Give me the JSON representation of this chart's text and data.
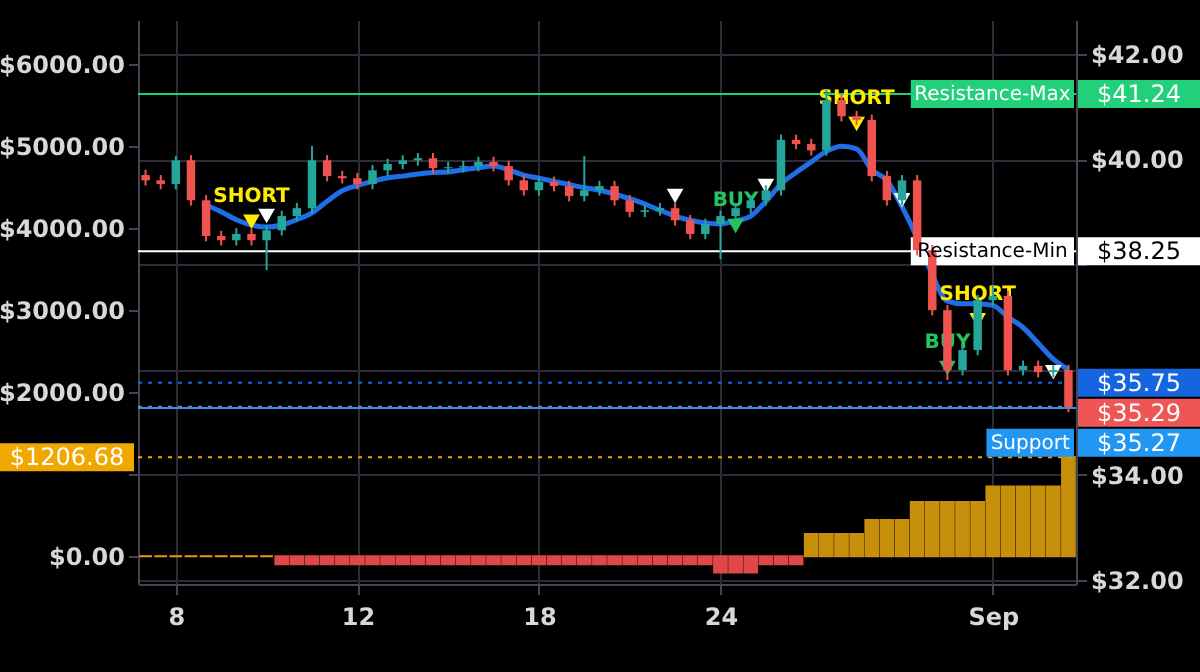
{
  "chart_data": {
    "type": "candlestick",
    "categories": [
      null,
      null,
      "8",
      null,
      null,
      null,
      null,
      null,
      null,
      null,
      null,
      null,
      null,
      null,
      "12",
      null,
      null,
      null,
      null,
      null,
      null,
      null,
      null,
      null,
      null,
      null,
      "18",
      null,
      null,
      null,
      null,
      null,
      null,
      null,
      null,
      null,
      null,
      null,
      "24",
      null,
      null,
      null,
      null,
      null,
      null,
      null,
      null,
      null,
      null,
      null,
      null,
      null,
      null,
      null,
      null,
      null,
      "Sep",
      null,
      null,
      null,
      null,
      null
    ],
    "ohlc": [
      [
        39.7,
        39.8,
        39.5,
        39.6
      ],
      [
        39.6,
        39.7,
        39.43,
        39.53
      ],
      [
        39.53,
        40.06,
        39.43,
        39.98
      ],
      [
        39.98,
        40.08,
        39.12,
        39.22
      ],
      [
        39.22,
        39.32,
        38.44,
        38.54
      ],
      [
        38.54,
        38.64,
        38.36,
        38.46
      ],
      [
        38.46,
        38.69,
        38.36,
        38.58
      ],
      [
        38.58,
        38.68,
        38.36,
        38.46
      ],
      [
        38.46,
        38.75,
        37.89,
        38.65
      ],
      [
        38.65,
        39.02,
        38.55,
        38.92
      ],
      [
        38.92,
        39.17,
        38.82,
        39.07
      ],
      [
        39.07,
        40.25,
        38.97,
        39.98
      ],
      [
        39.98,
        40.08,
        39.58,
        39.68
      ],
      [
        39.68,
        39.78,
        39.54,
        39.64
      ],
      [
        39.64,
        39.74,
        39.43,
        39.53
      ],
      [
        39.53,
        39.89,
        39.43,
        39.79
      ],
      [
        39.79,
        40.01,
        39.69,
        39.91
      ],
      [
        39.91,
        40.08,
        39.81,
        39.98
      ],
      [
        39.98,
        40.12,
        39.88,
        40.02
      ],
      [
        40.02,
        40.12,
        39.73,
        39.83
      ],
      [
        39.83,
        39.95,
        39.73,
        39.85
      ],
      [
        39.85,
        39.97,
        39.75,
        39.87
      ],
      [
        39.87,
        40.05,
        39.77,
        39.95
      ],
      [
        39.95,
        40.05,
        39.77,
        39.87
      ],
      [
        39.87,
        39.97,
        39.5,
        39.6
      ],
      [
        39.6,
        39.7,
        39.31,
        39.41
      ],
      [
        39.41,
        39.67,
        39.31,
        39.57
      ],
      [
        39.57,
        39.67,
        39.39,
        39.49
      ],
      [
        39.49,
        39.59,
        39.2,
        39.3
      ],
      [
        39.3,
        40.06,
        39.2,
        39.41
      ],
      [
        39.41,
        39.59,
        39.31,
        39.49
      ],
      [
        39.49,
        39.59,
        39.12,
        39.22
      ],
      [
        39.22,
        39.32,
        38.9,
        39.0
      ],
      [
        39.0,
        39.13,
        38.9,
        39.03
      ],
      [
        39.03,
        39.17,
        38.93,
        39.07
      ],
      [
        39.07,
        39.17,
        38.74,
        38.84
      ],
      [
        38.84,
        38.94,
        38.48,
        38.58
      ],
      [
        38.58,
        38.87,
        38.48,
        38.77
      ],
      [
        38.77,
        39.02,
        38.1,
        38.92
      ],
      [
        38.92,
        39.17,
        38.82,
        39.07
      ],
      [
        39.07,
        39.32,
        38.97,
        39.22
      ],
      [
        39.22,
        39.51,
        39.12,
        39.41
      ],
      [
        39.41,
        40.47,
        39.31,
        40.37
      ],
      [
        40.37,
        40.47,
        40.19,
        40.29
      ],
      [
        40.29,
        40.39,
        40.07,
        40.17
      ],
      [
        40.17,
        41.32,
        40.07,
        41.13
      ],
      [
        41.13,
        41.23,
        40.72,
        40.82
      ],
      [
        40.82,
        40.92,
        40.65,
        40.75
      ],
      [
        40.75,
        40.85,
        39.58,
        39.68
      ],
      [
        39.68,
        39.78,
        39.12,
        39.22
      ],
      [
        39.22,
        39.7,
        39.12,
        39.6
      ],
      [
        39.6,
        39.7,
        38.17,
        38.27
      ],
      [
        38.27,
        38.37,
        37.03,
        37.13
      ],
      [
        37.13,
        37.23,
        35.8,
        35.99
      ],
      [
        35.99,
        36.47,
        35.89,
        36.37
      ],
      [
        36.37,
        37.42,
        36.27,
        37.32
      ],
      [
        37.32,
        37.6,
        37.22,
        37.4
      ],
      [
        37.4,
        37.5,
        35.89,
        35.99
      ],
      [
        35.99,
        36.17,
        35.89,
        36.07
      ],
      [
        36.07,
        36.17,
        35.85,
        35.95
      ],
      [
        35.95,
        36.09,
        35.85,
        35.99
      ],
      [
        35.99,
        36.09,
        35.19,
        35.29
      ]
    ],
    "colors": [
      "#ef5350",
      "#ef5350",
      "#26a69a",
      "#ef5350",
      "#ef5350",
      "#ef5350",
      "#26a69a",
      "#ef5350",
      "#26a69a",
      "#26a69a",
      "#26a69a",
      "#26a69a",
      "#ef5350",
      "#ef5350",
      "#ef5350",
      "#26a69a",
      "#26a69a",
      "#26a69a",
      "#26a69a",
      "#ef5350",
      "#26a69a",
      "#26a69a",
      "#26a69a",
      "#ef5350",
      "#ef5350",
      "#ef5350",
      "#26a69a",
      "#ef5350",
      "#ef5350",
      "#26a69a",
      "#26a69a",
      "#ef5350",
      "#ef5350",
      "#26a69a",
      "#26a69a",
      "#ef5350",
      "#ef5350",
      "#26a69a",
      "#26a69a",
      "#26a69a",
      "#26a69a",
      "#26a69a",
      "#26a69a",
      "#ef5350",
      "#ef5350",
      "#26a69a",
      "#ef5350",
      "#ef5350",
      "#ef5350",
      "#ef5350",
      "#26a69a",
      "#ef5350",
      "#ef5350",
      "#ef5350",
      "#26a69a",
      "#26a69a",
      "#26a69a",
      "#ef5350",
      "#26a69a",
      "#ef5350",
      "#26a69a",
      "#ef5350"
    ],
    "series": [
      {
        "type": "line",
        "axis": "y",
        "color": "#1e6ee6",
        "values": [
          null,
          null,
          null,
          null,
          39.13,
          39.0,
          38.85,
          38.75,
          38.71,
          38.75,
          38.85,
          38.98,
          39.2,
          39.4,
          39.5,
          39.58,
          39.65,
          39.68,
          39.72,
          39.75,
          39.76,
          39.8,
          39.84,
          39.87,
          39.8,
          39.7,
          39.64,
          39.58,
          39.52,
          39.46,
          39.41,
          39.34,
          39.25,
          39.15,
          39.03,
          38.92,
          38.84,
          38.79,
          38.77,
          38.83,
          38.92,
          39.2,
          39.53,
          39.75,
          39.95,
          40.15,
          40.25,
          40.2,
          39.8,
          39.6,
          39.1,
          38.5,
          37.8,
          37.3,
          37.25,
          37.25,
          37.22,
          37.0,
          36.8,
          36.5,
          36.2,
          36.0
        ]
      },
      {
        "type": "scatter",
        "axis": "y",
        "marker": "triangle",
        "color": "#ffeb00",
        "values": [
          null,
          null,
          null,
          null,
          null,
          null,
          null,
          38.81,
          null,
          null,
          null,
          null,
          null,
          null,
          null,
          null,
          null,
          null,
          null,
          null,
          null,
          null,
          null,
          null,
          null,
          null,
          null,
          null,
          null,
          null,
          null,
          null,
          null,
          null,
          null,
          null,
          null,
          null,
          null,
          null,
          null,
          null,
          null,
          null,
          null,
          null,
          null,
          40.67,
          null,
          null,
          null,
          null,
          null,
          null,
          null,
          36.94,
          null,
          null,
          null,
          null,
          null,
          null
        ],
        "value_labels": [
          null,
          null,
          null,
          null,
          null,
          null,
          null,
          "SHORT",
          null,
          null,
          null,
          null,
          null,
          null,
          null,
          null,
          null,
          null,
          null,
          null,
          null,
          null,
          null,
          null,
          null,
          null,
          null,
          null,
          null,
          null,
          null,
          null,
          null,
          null,
          null,
          null,
          null,
          null,
          null,
          null,
          null,
          null,
          null,
          null,
          null,
          null,
          null,
          "SHORT",
          null,
          null,
          null,
          null,
          null,
          null,
          null,
          "SHORT",
          null,
          null,
          null,
          null,
          null,
          null
        ]
      },
      {
        "type": "scatter",
        "axis": "y",
        "marker": "triangle",
        "color": "#22c55e",
        "values": [
          null,
          null,
          null,
          null,
          null,
          null,
          null,
          null,
          null,
          null,
          null,
          null,
          null,
          null,
          null,
          null,
          null,
          null,
          null,
          null,
          null,
          null,
          null,
          null,
          null,
          null,
          null,
          null,
          null,
          null,
          null,
          null,
          null,
          null,
          null,
          null,
          null,
          null,
          null,
          38.73,
          null,
          null,
          null,
          null,
          null,
          null,
          null,
          null,
          null,
          null,
          null,
          null,
          null,
          36.03,
          null,
          null,
          null,
          null,
          null,
          null,
          null,
          null
        ],
        "value_labels": [
          null,
          null,
          null,
          null,
          null,
          null,
          null,
          null,
          null,
          null,
          null,
          null,
          null,
          null,
          null,
          null,
          null,
          null,
          null,
          null,
          null,
          null,
          null,
          null,
          null,
          null,
          null,
          null,
          null,
          null,
          null,
          null,
          null,
          null,
          null,
          null,
          null,
          null,
          null,
          "BUY",
          null,
          null,
          null,
          null,
          null,
          null,
          null,
          null,
          null,
          null,
          null,
          null,
          null,
          "BUY",
          null,
          null,
          null,
          null,
          null,
          null,
          null,
          null
        ]
      },
      {
        "type": "scatter",
        "axis": "y",
        "marker": "triangle",
        "color": "#ffffff",
        "values": [
          null,
          null,
          null,
          null,
          null,
          null,
          null,
          null,
          38.92,
          null,
          null,
          null,
          null,
          null,
          null,
          null,
          null,
          null,
          null,
          null,
          null,
          null,
          null,
          null,
          null,
          null,
          null,
          null,
          null,
          null,
          null,
          null,
          null,
          null,
          null,
          39.3,
          null,
          null,
          null,
          null,
          null,
          39.49,
          null,
          null,
          null,
          null,
          null,
          null,
          null,
          null,
          39.22,
          null,
          null,
          null,
          null,
          null,
          null,
          null,
          null,
          null,
          35.95,
          null
        ]
      },
      {
        "type": "bar",
        "axis": "y2",
        "values": [
          0,
          0,
          0,
          0,
          0,
          0,
          0,
          0,
          0,
          -100,
          -100,
          -100,
          -100,
          -100,
          -100,
          -100,
          -100,
          -100,
          -100,
          -100,
          -100,
          -100,
          -100,
          -100,
          -100,
          -100,
          -100,
          -100,
          -100,
          -100,
          -100,
          -100,
          -100,
          -100,
          -100,
          -100,
          -100,
          -100,
          -200,
          -200,
          -200,
          -100,
          -100,
          -100,
          270,
          270,
          270,
          270,
          440,
          440,
          440,
          660,
          660,
          660,
          660,
          660,
          850,
          850,
          850,
          850,
          850,
          1210
        ],
        "colors": [
          "#e69a0b",
          "#e69a0b",
          "#e69a0b",
          "#e69a0b",
          "#e69a0b",
          "#e69a0b",
          "#e69a0b",
          "#e69a0b",
          "#e69a0b",
          "#e04848",
          "#e04848",
          "#e04848",
          "#e04848",
          "#e04848",
          "#e04848",
          "#e04848",
          "#e04848",
          "#e04848",
          "#e04848",
          "#e04848",
          "#e04848",
          "#e04848",
          "#e04848",
          "#e04848",
          "#e04848",
          "#e04848",
          "#e04848",
          "#e04848",
          "#e04848",
          "#e04848",
          "#e04848",
          "#e04848",
          "#e04848",
          "#e04848",
          "#e04848",
          "#e04848",
          "#e04848",
          "#e04848",
          "#e04848",
          "#e04848",
          "#e04848",
          "#e04848",
          "#e04848",
          "#e04848",
          "#c8900a",
          "#c8900a",
          "#c8900a",
          "#c8900a",
          "#c8900a",
          "#c8900a",
          "#c8900a",
          "#c8900a",
          "#c8900a",
          "#c8900a",
          "#c8900a",
          "#c8900a",
          "#c8900a",
          "#c8900a",
          "#c8900a",
          "#c8900a",
          "#c8900a",
          "#c8900a"
        ]
      }
    ],
    "y2lim": [
      -340,
      6540
    ],
    "y2ticks": [
      {
        "value": 0,
        "label": "$0.00"
      },
      {
        "value": 1000,
        "label": null
      },
      {
        "value": 2000,
        "label": "$2000.00"
      },
      {
        "value": 3000,
        "label": "$3000.00"
      },
      {
        "value": 4000,
        "label": "$4000.00"
      },
      {
        "value": 5000,
        "label": "$5000.00"
      },
      {
        "value": 6000,
        "label": "$6000.00"
      },
      {
        "value": 1206.68,
        "label": "$1206.68"
      }
    ],
    "ylim": [
      31.92,
      42.65
    ],
    "yticks": [
      {
        "value": 32,
        "label": "$32.00"
      },
      {
        "value": 34,
        "label": "$34.00"
      },
      {
        "value": 36,
        "label": null
      },
      {
        "value": 38,
        "label": null
      },
      {
        "value": 40,
        "label": "$40.00"
      },
      {
        "value": 42,
        "label": "$42.00"
      },
      {
        "value": 41.24,
        "label": "$41.24"
      },
      {
        "value": 38.25,
        "label": "$38.25"
      },
      {
        "value": 35.75,
        "label": "$35.75"
      },
      {
        "value": 35.29,
        "label": "$35.29"
      }
    ],
    "ref_lines": [
      {
        "axis": "y",
        "value": 41.24,
        "label": "Resistance-Max",
        "color": "#22d07a",
        "line_style": "solid"
      },
      {
        "axis": "y",
        "value": 38.25,
        "label": "Resistance-Min",
        "color": "#ffffff",
        "line_style": "solid"
      },
      {
        "axis": "y",
        "value": 35.75,
        "color": "#1565e0",
        "line_style": "dotted"
      },
      {
        "axis": "y",
        "value": 35.29,
        "color": "#f05555",
        "line_style": "dotted"
      },
      {
        "axis": "y",
        "value": 35.27,
        "label": "Support",
        "color": "#2196f3",
        "line_style": "solid"
      },
      {
        "axis": "y2",
        "value": 1206.68,
        "color": "#f0a800",
        "line_style": "dotted"
      }
    ],
    "annotations": [
      "$35.27"
    ],
    "grid": true
  }
}
